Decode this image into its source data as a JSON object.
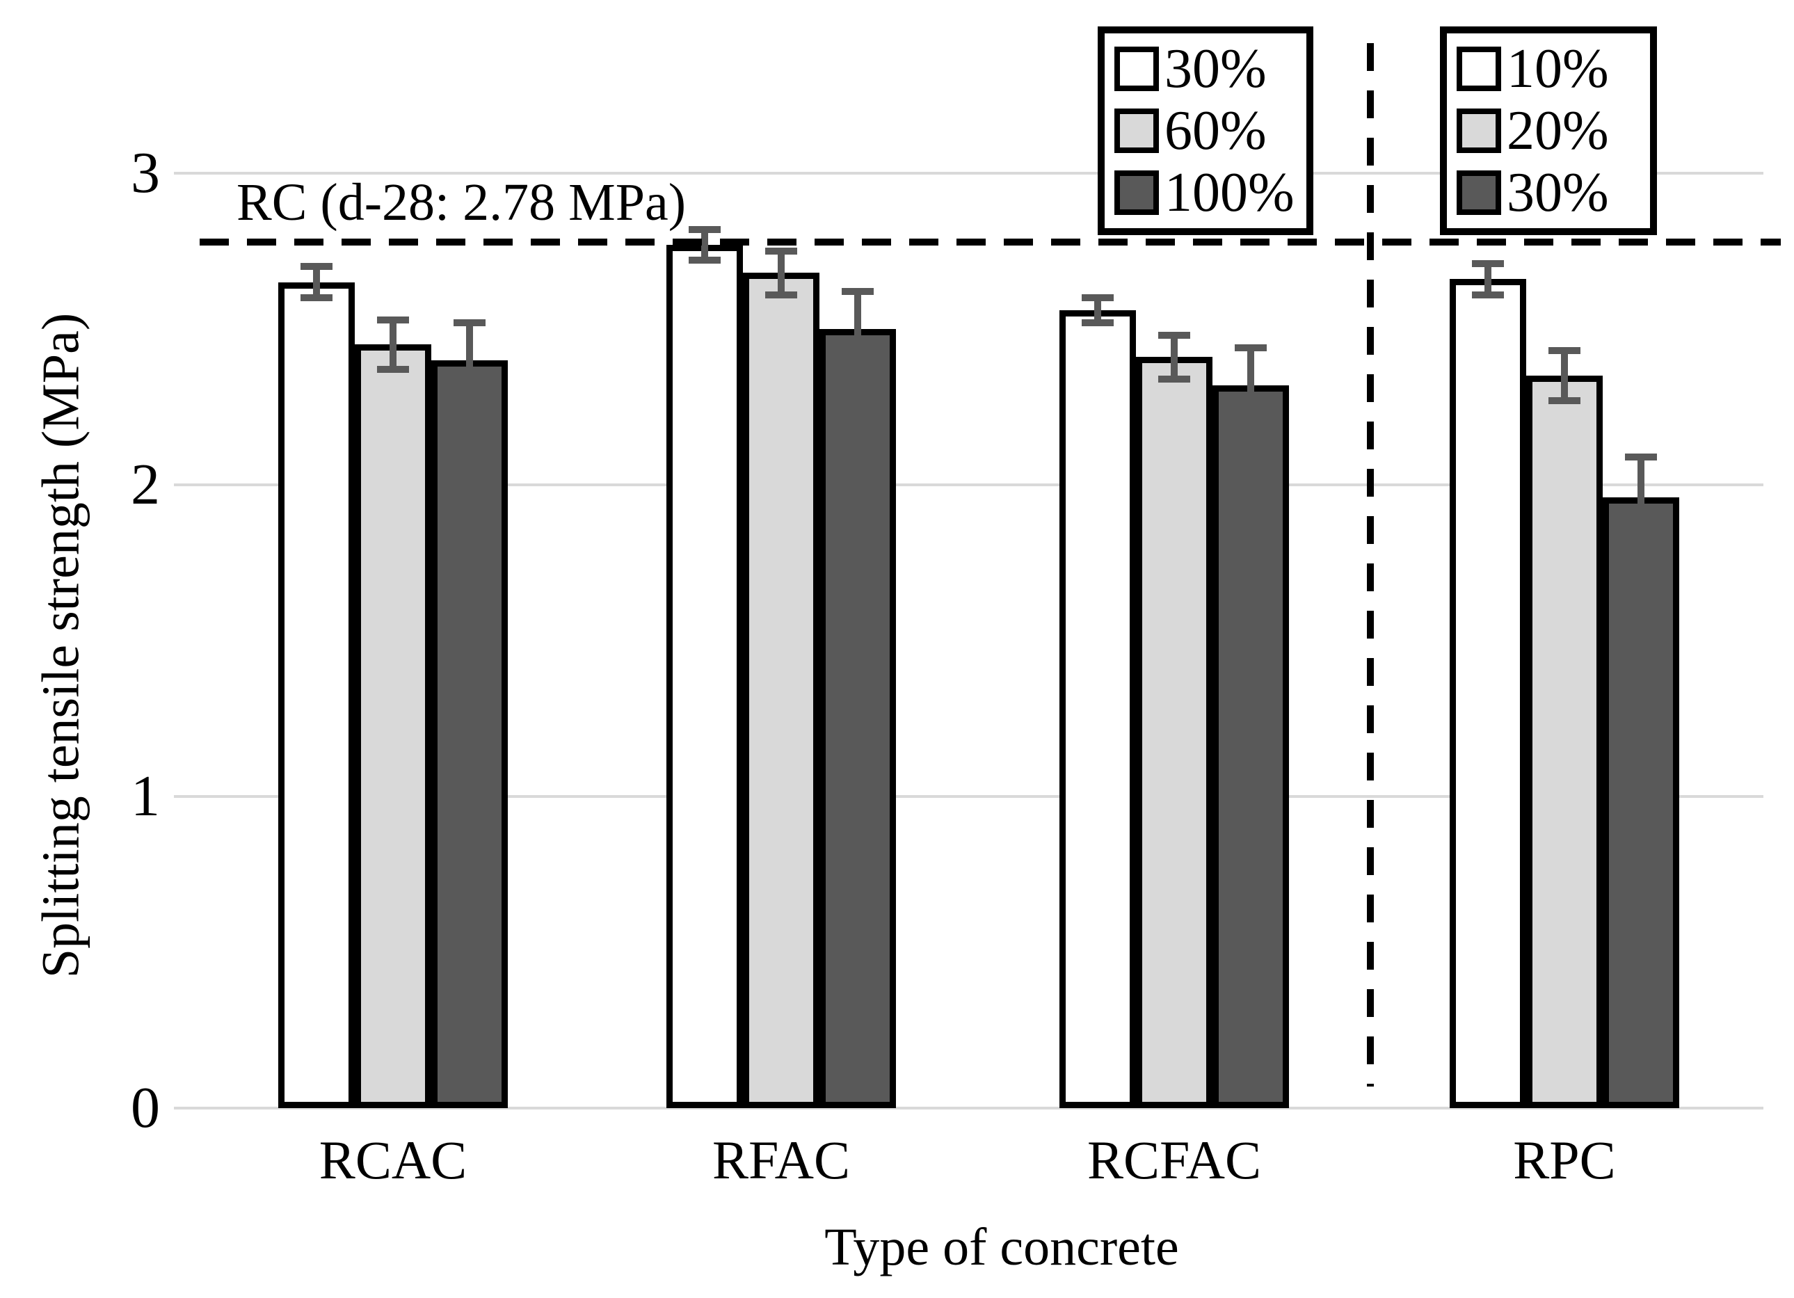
{
  "chart_data": {
    "type": "bar",
    "title": "",
    "xlabel": "Type of concrete",
    "ylabel": "Splitting tensile strength (MPa)",
    "ylim": [
      0,
      3
    ],
    "yticks": [
      0,
      1,
      2,
      3
    ],
    "grid": true,
    "legend_position": "top-right",
    "categories": [
      "RCAC",
      "RFAC",
      "RCFAC",
      "RPC"
    ],
    "bar_colors": [
      "#ffffff",
      "#d9d9d9",
      "#595959"
    ],
    "groups": [
      {
        "category": "RCAC",
        "bars": [
          {
            "label": "30%",
            "value": 2.65,
            "error": 0.05,
            "fill": "#ffffff"
          },
          {
            "label": "60%",
            "value": 2.45,
            "error": 0.08,
            "fill": "#d9d9d9"
          },
          {
            "label": "100%",
            "value": 2.4,
            "error": 0.12,
            "fill": "#595959"
          }
        ]
      },
      {
        "category": "RFAC",
        "bars": [
          {
            "label": "30%",
            "value": 2.77,
            "error": 0.05,
            "fill": "#ffffff"
          },
          {
            "label": "60%",
            "value": 2.68,
            "error": 0.07,
            "fill": "#d9d9d9"
          },
          {
            "label": "100%",
            "value": 2.5,
            "error": 0.12,
            "fill": "#595959"
          }
        ]
      },
      {
        "category": "RCFAC",
        "bars": [
          {
            "label": "30%",
            "value": 2.56,
            "error": 0.04,
            "fill": "#ffffff"
          },
          {
            "label": "60%",
            "value": 2.41,
            "error": 0.07,
            "fill": "#d9d9d9"
          },
          {
            "label": "100%",
            "value": 2.32,
            "error": 0.12,
            "fill": "#595959"
          }
        ]
      },
      {
        "category": "RPC",
        "bars": [
          {
            "label": "10%",
            "value": 2.66,
            "error": 0.05,
            "fill": "#ffffff"
          },
          {
            "label": "20%",
            "value": 2.35,
            "error": 0.08,
            "fill": "#d9d9d9"
          },
          {
            "label": "30%",
            "value": 1.96,
            "error": 0.13,
            "fill": "#595959"
          }
        ]
      }
    ],
    "legends": [
      {
        "applies_to": [
          "RCAC",
          "RFAC",
          "RCFAC"
        ],
        "entries": [
          {
            "label": "30%",
            "fill": "#ffffff"
          },
          {
            "label": "60%",
            "fill": "#d9d9d9"
          },
          {
            "label": "100%",
            "fill": "#595959"
          }
        ]
      },
      {
        "applies_to": [
          "RPC"
        ],
        "entries": [
          {
            "label": "10%",
            "fill": "#ffffff"
          },
          {
            "label": "20%",
            "fill": "#d9d9d9"
          },
          {
            "label": "30%",
            "fill": "#595959"
          }
        ]
      }
    ],
    "reference_line": {
      "value": 2.78,
      "label": "RC (d-28: 2.78 MPa)"
    },
    "separator_after_category": "RCFAC",
    "colors": {
      "light_gray": "#d9d9d9",
      "dark_gray": "#595959",
      "grid": "#d9d9d9",
      "error_bar": "#595959"
    }
  }
}
